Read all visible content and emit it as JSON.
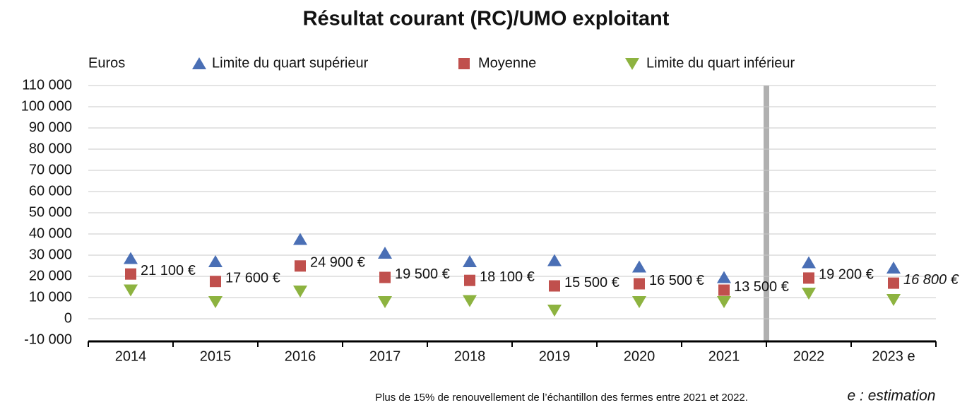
{
  "chart_data": {
    "type": "scatter",
    "title": "Résultat courant (RC)/UMO exploitant",
    "y_label": "Euros",
    "categories": [
      "2014",
      "2015",
      "2016",
      "2017",
      "2018",
      "2019",
      "2020",
      "2021",
      "2022",
      "2023 e"
    ],
    "series": [
      {
        "name": "Limite du quart supérieur",
        "color": "#4a6fb5",
        "marker": "triangle-up",
        "values": [
          28500,
          27000,
          37500,
          31000,
          27000,
          27500,
          24500,
          19500,
          26500,
          24000
        ]
      },
      {
        "name": "Moyenne",
        "color": "#c0504d",
        "marker": "square",
        "values": [
          21100,
          17600,
          24900,
          19500,
          18100,
          15500,
          16500,
          13500,
          19200,
          16800
        ],
        "value_labels": [
          "21 100 €",
          "17 600 €",
          "24 900 €",
          "19 500 €",
          "18 100 €",
          "15 500 €",
          "16 500 €",
          "13 500 €",
          "19 200 €",
          "16 800 €"
        ]
      },
      {
        "name": "Limite du quart inférieur",
        "color": "#8db340",
        "marker": "triangle-down",
        "values": [
          13500,
          8000,
          13000,
          8000,
          8500,
          4000,
          8000,
          8000,
          12000,
          9000
        ]
      }
    ],
    "ylim": [
      -10000,
      110000
    ],
    "yticks": [
      {
        "value": -10000,
        "label": "-10 000"
      },
      0,
      {
        "value": 10000,
        "label": "10 000"
      },
      {
        "value": 20000,
        "label": "20 000"
      },
      {
        "value": 30000,
        "label": "30 000"
      },
      {
        "value": 40000,
        "label": "40 000"
      },
      {
        "value": 50000,
        "label": "50 000"
      },
      {
        "value": 60000,
        "label": "60 000"
      },
      {
        "value": 70000,
        "label": "70 000"
      },
      {
        "value": 80000,
        "label": "80 000"
      },
      {
        "value": 90000,
        "label": "90 000"
      },
      {
        "value": 100000,
        "label": "100 000"
      },
      {
        "value": 110000,
        "label": "110 000"
      }
    ],
    "grid": true,
    "note": "Plus de 15% de renouvellement de l’échantillon des fermes entre 2021 et 2022.",
    "annotation": "e : estimation"
  }
}
